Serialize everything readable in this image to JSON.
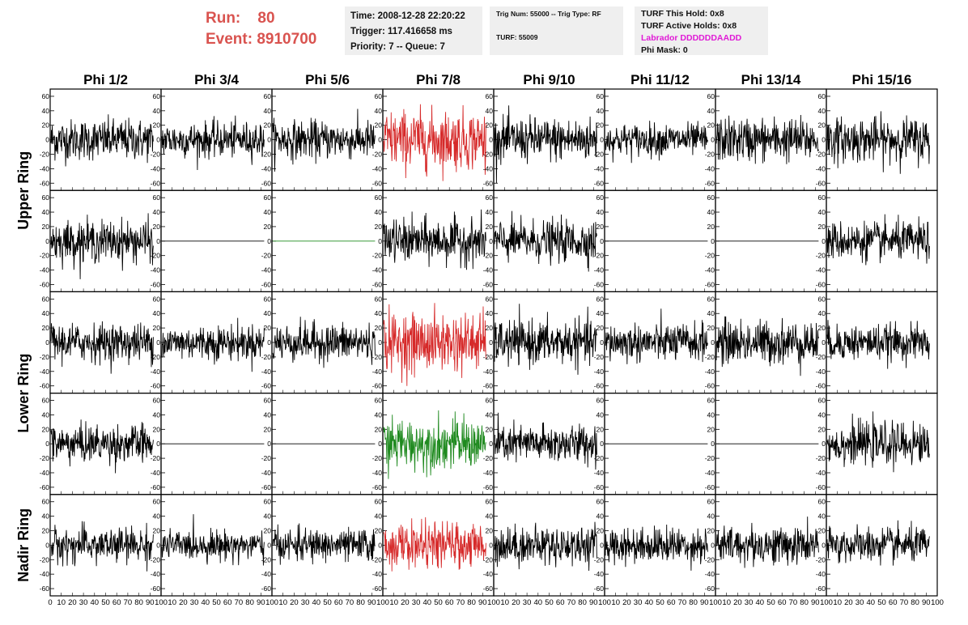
{
  "header": {
    "run_label": "Run:",
    "run_value": "80",
    "event_label": "Event:",
    "event_value": "8910700",
    "time": "Time: 2008-12-28 22:20:22",
    "trigger": "Trigger: 117.416658 ms",
    "priority": "Priority: 7 -- Queue: 7",
    "trig_num": "Trig Num: 55000 -- Trig Type: RF",
    "turf": "TURF: 55009",
    "turf_this_hold": "TURF This Hold: 0x8",
    "turf_active_holds": "TURF Active Holds: 0x8",
    "labrador": "Labrador DDDDDDAADD",
    "phi_mask": "Phi Mask: 0"
  },
  "colors": {
    "accent_text": "#d9534f",
    "labrador": "#e01bd6",
    "trace_black": "#000000",
    "trace_red": "#d62a2a",
    "trace_green": "#1f8a1f",
    "info_bg": "#efefef"
  },
  "chart_data": {
    "type": "line",
    "columns": [
      "Phi 1/2",
      "Phi 3/4",
      "Phi 5/6",
      "Phi 7/8",
      "Phi 9/10",
      "Phi 11/12",
      "Phi 13/14",
      "Phi 15/16"
    ],
    "ring_labels": [
      "Upper Ring",
      "Lower Ring",
      "Nadir Ring"
    ],
    "ylim": [
      -70,
      70
    ],
    "yticks": [
      -60,
      -40,
      -20,
      0,
      20,
      40,
      60
    ],
    "xlim": [
      0,
      100
    ],
    "xticks": [
      0,
      10,
      20,
      30,
      40,
      50,
      60,
      70,
      80,
      90,
      100
    ],
    "samples_per_trace": 260,
    "flat_panels": [
      [
        1,
        1
      ],
      [
        1,
        2
      ],
      [
        1,
        5
      ],
      [
        1,
        6
      ],
      [
        3,
        1
      ],
      [
        3,
        2
      ],
      [
        3,
        5
      ],
      [
        3,
        6
      ]
    ],
    "panel_colors": {
      "0,3": "red",
      "2,3": "red",
      "4,3": "red",
      "3,3": "green",
      "1,2": "green"
    },
    "amplitude_rms": [
      [
        14,
        12,
        13,
        20,
        15,
        11,
        15,
        15
      ],
      [
        14,
        0,
        0,
        15,
        14,
        0,
        0,
        13
      ],
      [
        13,
        12,
        13,
        20,
        15,
        13,
        15,
        12
      ],
      [
        13,
        0,
        0,
        17,
        13,
        0,
        0,
        14
      ],
      [
        12,
        10,
        11,
        15,
        13,
        12,
        13,
        12
      ]
    ]
  }
}
